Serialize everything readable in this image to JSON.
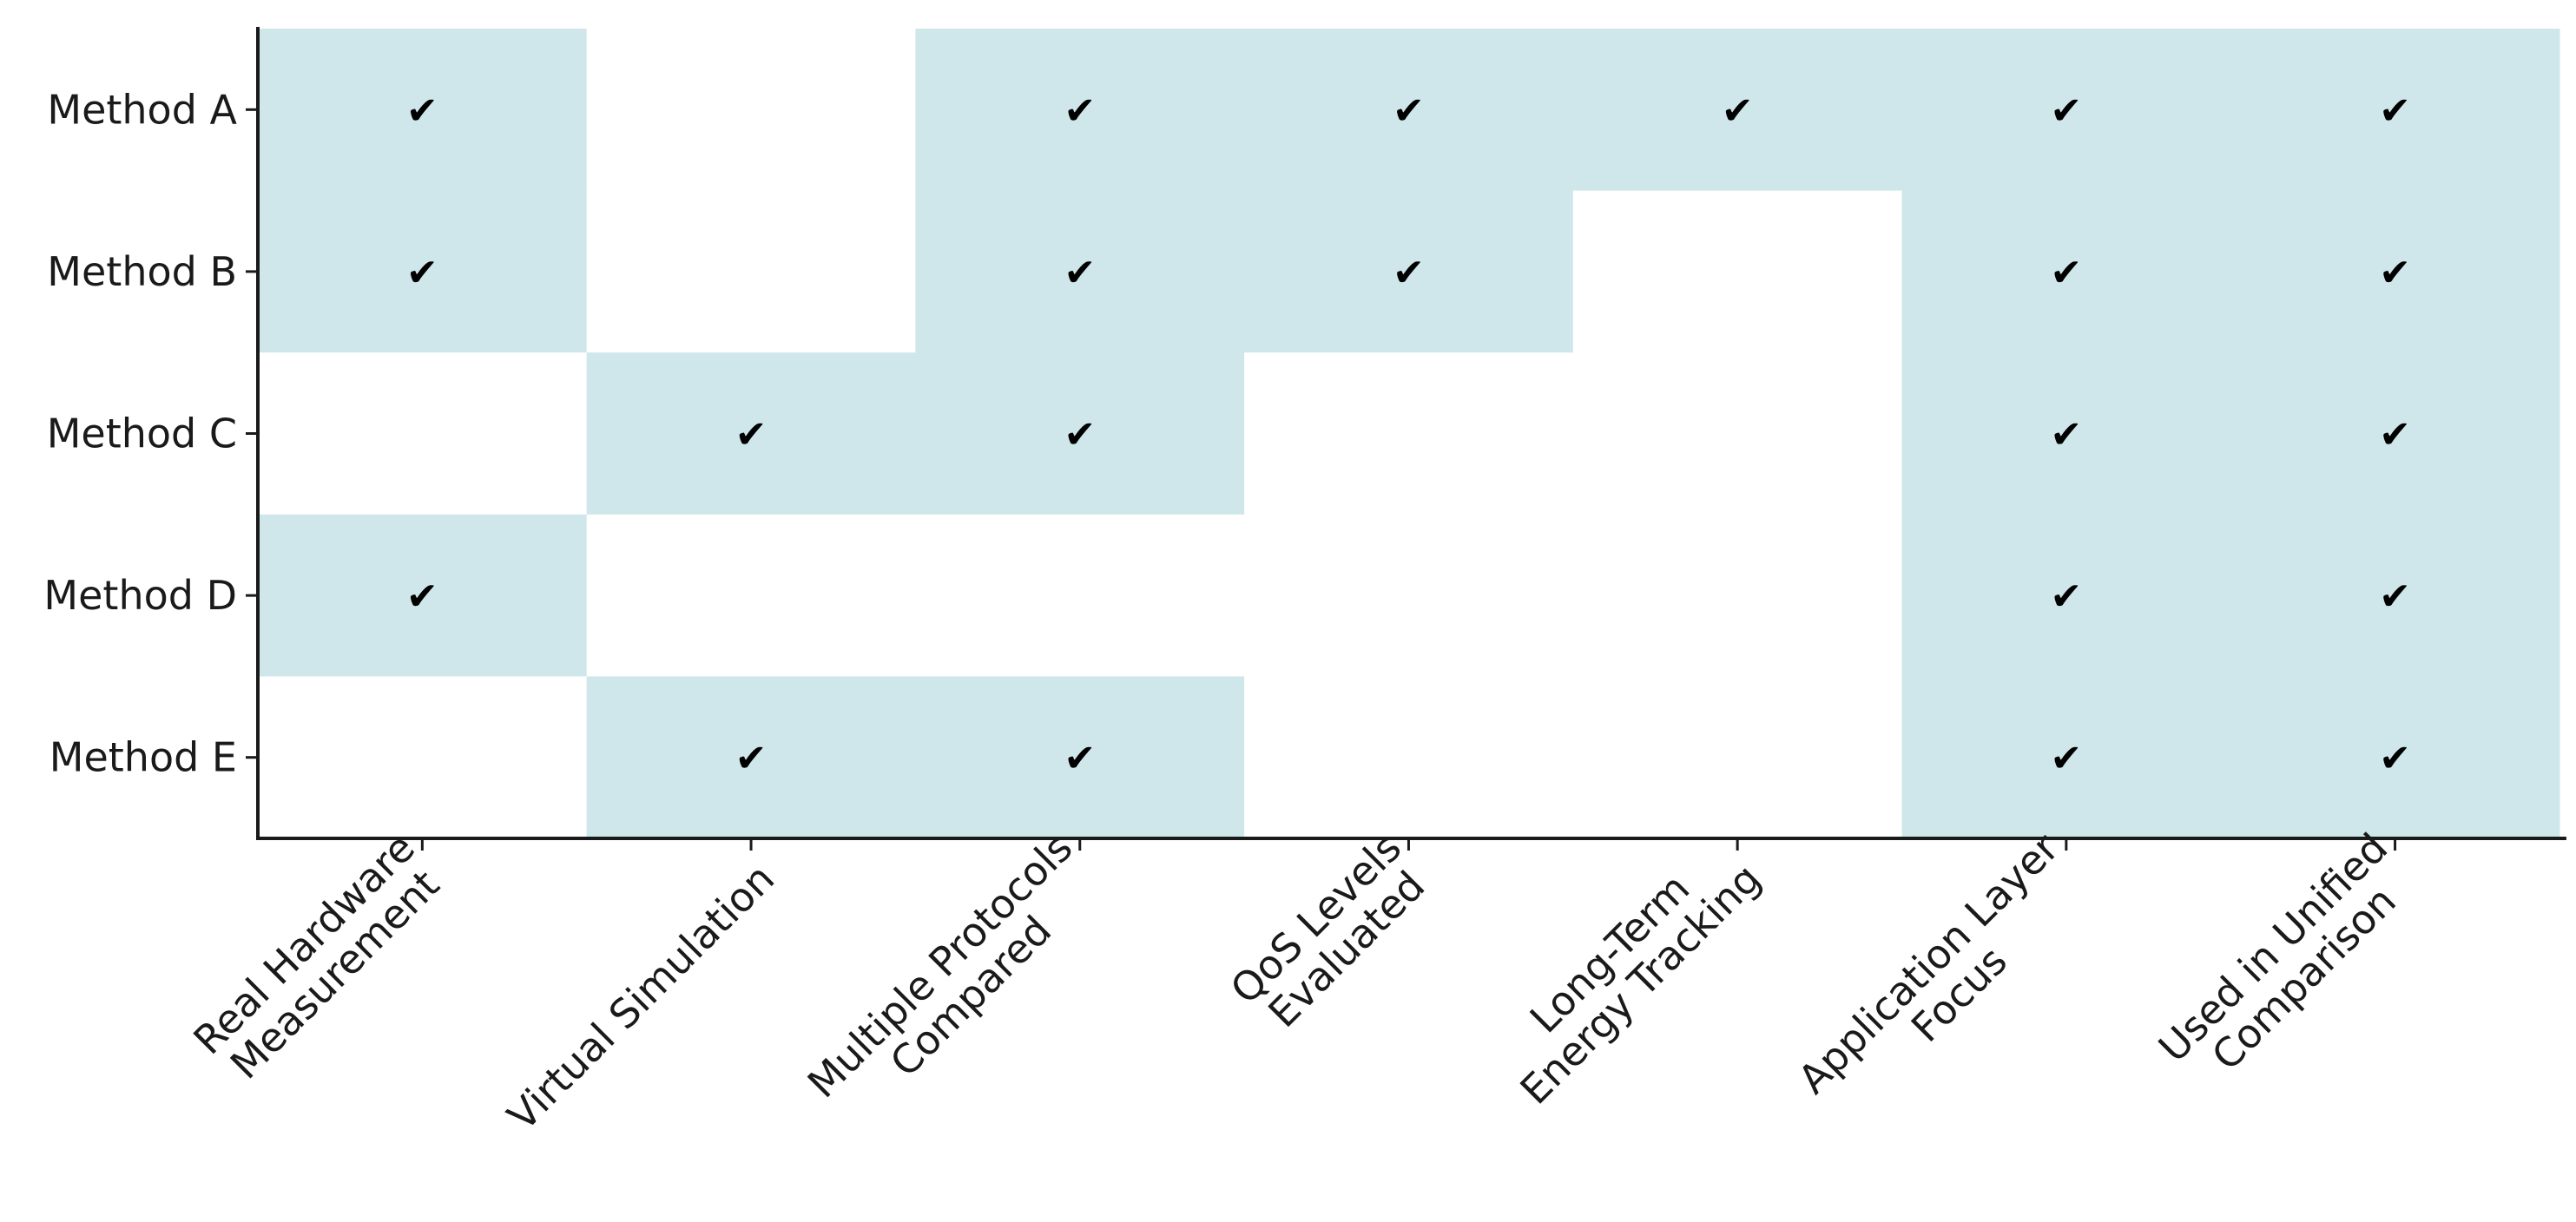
{
  "chart_data": {
    "type": "heatmap",
    "title": "",
    "xlabel": "",
    "ylabel": "",
    "rows": [
      "Method A",
      "Method B",
      "Method C",
      "Method D",
      "Method E"
    ],
    "columns": [
      [
        "Real Hardware",
        "Measurement"
      ],
      [
        "Virtual Simulation"
      ],
      [
        "Multiple Protocols",
        "Compared"
      ],
      [
        "QoS Levels",
        "Evaluated"
      ],
      [
        "Long-Term",
        "Energy Tracking"
      ],
      [
        "Application Layer",
        "Focus"
      ],
      [
        "Used in Unified",
        "Comparison"
      ]
    ],
    "matrix": [
      [
        1,
        0,
        1,
        1,
        1,
        1,
        1
      ],
      [
        1,
        0,
        1,
        1,
        0,
        1,
        1
      ],
      [
        0,
        1,
        1,
        0,
        0,
        1,
        1
      ],
      [
        1,
        0,
        0,
        0,
        0,
        1,
        1
      ],
      [
        0,
        1,
        1,
        0,
        0,
        1,
        1
      ]
    ],
    "check_symbol": "✔",
    "filled_color": "#cfe7ea",
    "empty_color": "#ffffff",
    "grid": false
  }
}
